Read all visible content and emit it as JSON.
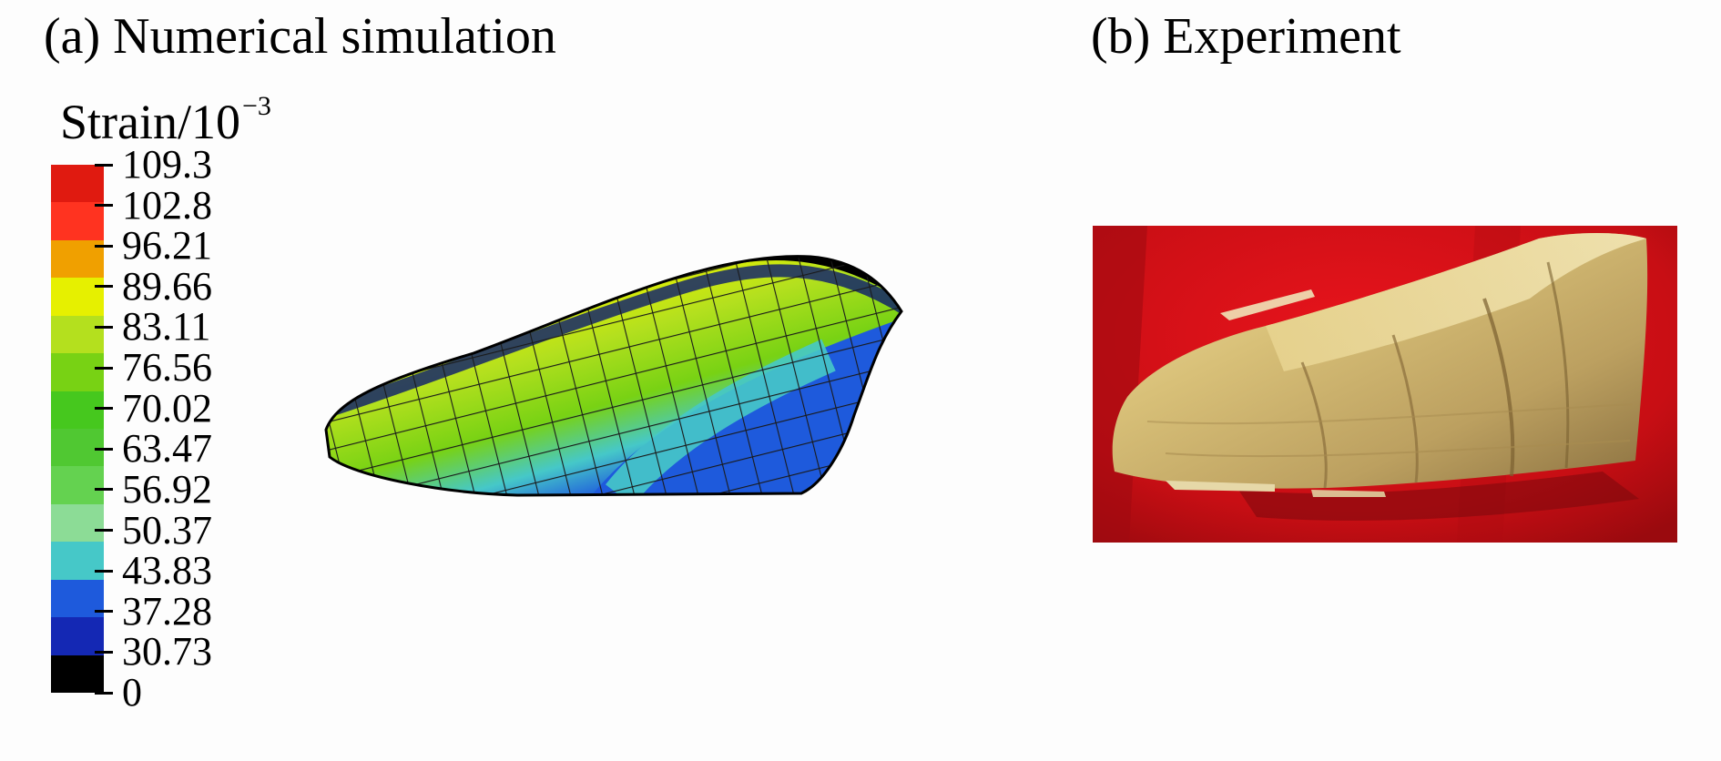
{
  "panel_a": {
    "title": "(a) Numerical simulation"
  },
  "panel_b": {
    "title": "(b) Experiment"
  },
  "legend": {
    "title": "Strain/10",
    "exponent": "−3",
    "ticks": [
      "109.3",
      "102.8",
      "96.21",
      "89.66",
      "83.11",
      "76.56",
      "70.02",
      "63.47",
      "56.92",
      "50.37",
      "43.83",
      "37.28",
      "30.73",
      "0"
    ],
    "colors": [
      "#e01a10",
      "#ff3320",
      "#f0a000",
      "#e6f000",
      "#b4e01e",
      "#78d214",
      "#46c81e",
      "#50c832",
      "#64d250",
      "#8cdc96",
      "#46c8c8",
      "#1e5adc",
      "#1428b4",
      "#000000"
    ]
  }
}
